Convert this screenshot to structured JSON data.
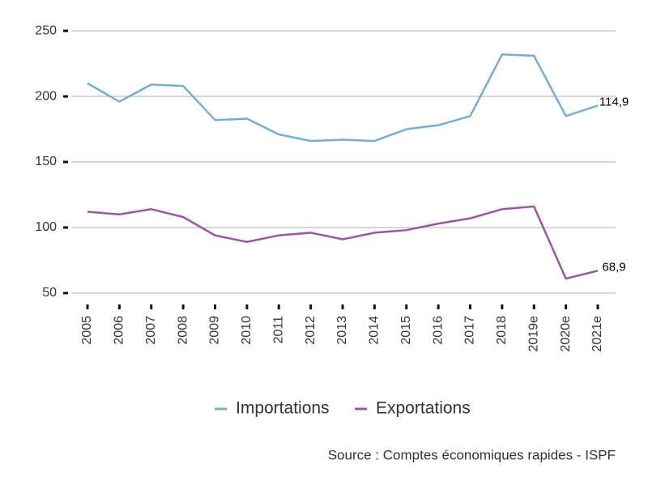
{
  "chart_data": {
    "type": "line",
    "categories": [
      "2005",
      "2006",
      "2007",
      "2008",
      "2009",
      "2010",
      "2011",
      "2012",
      "2013",
      "2014",
      "2015",
      "2016",
      "2017",
      "2018",
      "2019e",
      "2020e",
      "2021e"
    ],
    "series": [
      {
        "name": "Importations",
        "color": "#74aed4",
        "values": [
          210,
          196,
          209,
          208,
          182,
          183,
          171,
          166,
          167,
          166,
          175,
          178,
          185,
          232,
          231,
          185,
          193
        ]
      },
      {
        "name": "Exportations",
        "color": "#9b57a0",
        "values": [
          112,
          110,
          114,
          108,
          94,
          89,
          94,
          96,
          91,
          96,
          98,
          103,
          107,
          114,
          116,
          61,
          67
        ]
      }
    ],
    "annotations": [
      "114,9",
      "68,9"
    ],
    "ylim": [
      45,
      255
    ],
    "yticks": [
      50,
      100,
      150,
      200,
      250
    ],
    "grid": true,
    "legend": "bottom",
    "source": "Source : Comptes économiques rapides - ISPF"
  }
}
